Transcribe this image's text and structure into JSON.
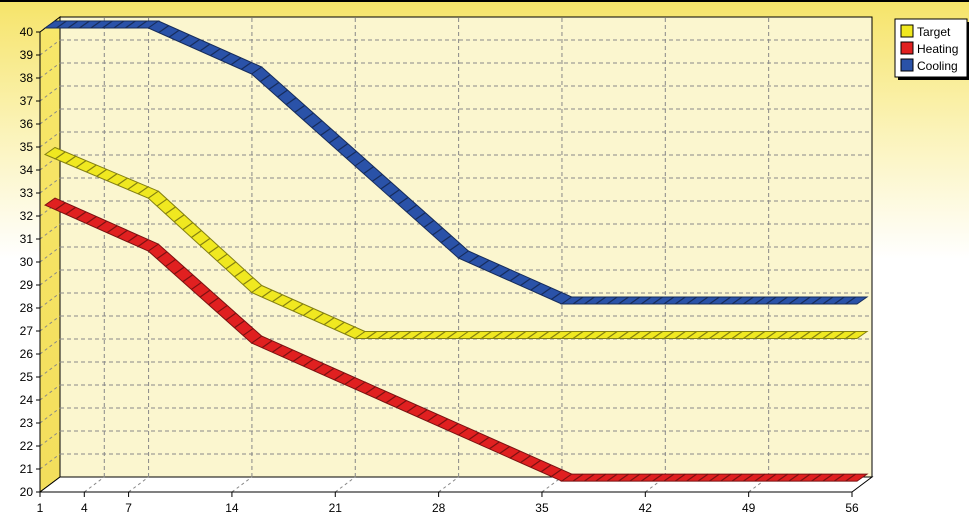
{
  "chart_data": {
    "type": "line",
    "title": "",
    "xlabel": "",
    "ylabel": "",
    "x": [
      1,
      8,
      15,
      22,
      29,
      36,
      56
    ],
    "x_ticks": [
      1,
      4,
      7,
      14,
      21,
      28,
      35,
      42,
      49,
      56
    ],
    "xlim": [
      1,
      56
    ],
    "y_ticks": [
      20,
      21,
      22,
      23,
      24,
      25,
      26,
      27,
      28,
      29,
      30,
      31,
      32,
      33,
      34,
      35,
      36,
      37,
      38,
      39,
      40
    ],
    "ylim": [
      20,
      40
    ],
    "grid": true,
    "legend_position": "top-right",
    "series": [
      {
        "name": "Target",
        "color": "#f0e820",
        "values": [
          34.5,
          32.6,
          28.5,
          26.5,
          26.5,
          26.5,
          26.5
        ]
      },
      {
        "name": "Heating",
        "color": "#e02020",
        "values": [
          32.3,
          30.3,
          26.3,
          24.3,
          22.3,
          20.3,
          20.3
        ]
      },
      {
        "name": "Cooling",
        "color": "#2a52a8",
        "values": [
          40,
          40,
          38,
          34,
          30,
          28,
          28
        ]
      }
    ]
  }
}
